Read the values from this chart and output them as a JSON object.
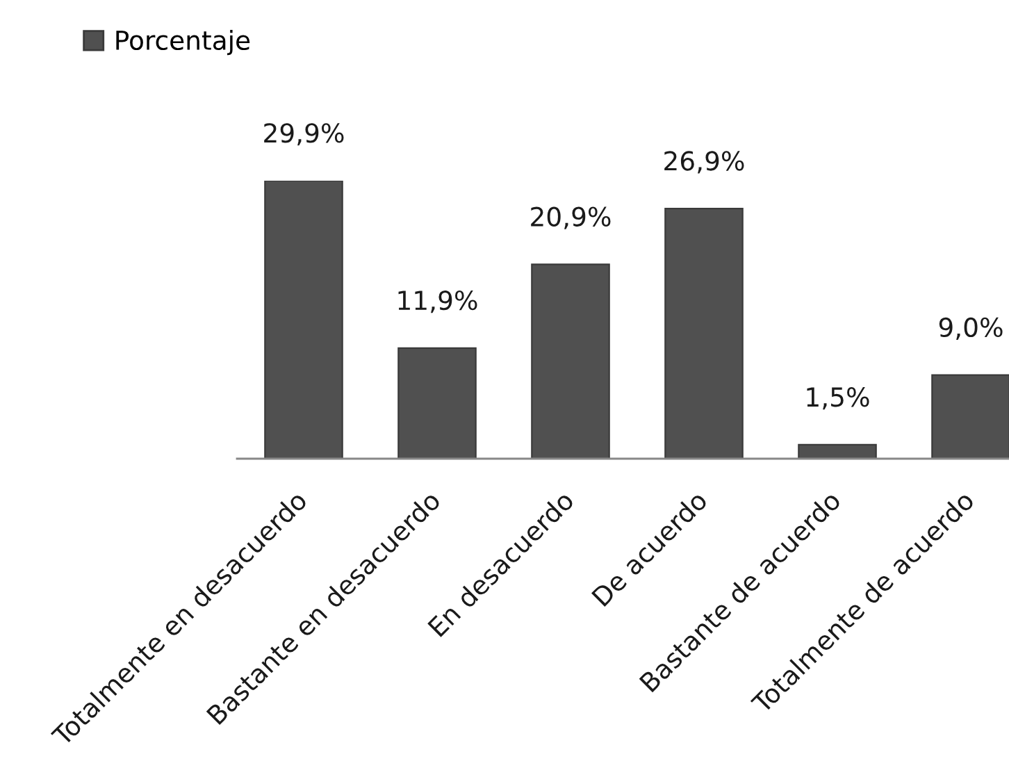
{
  "chart_data": {
    "type": "bar",
    "categories": [
      "Totalmente en desacuerdo",
      "Bastante en desacuerdo",
      "En desacuerdo",
      "De acuerdo",
      "Bastante de acuerdo",
      "Totalmente de acuerdo"
    ],
    "series": [
      {
        "name": "Porcentaje",
        "color": "#505050",
        "values": [
          29.9,
          11.9,
          20.9,
          26.9,
          1.5,
          9.0
        ],
        "value_labels": [
          "29,9%",
          "11,9%",
          "20,9%",
          "26,9%",
          "1,5%",
          "9,0%"
        ]
      }
    ],
    "legend": "top left",
    "tick_labels": "x"
  }
}
